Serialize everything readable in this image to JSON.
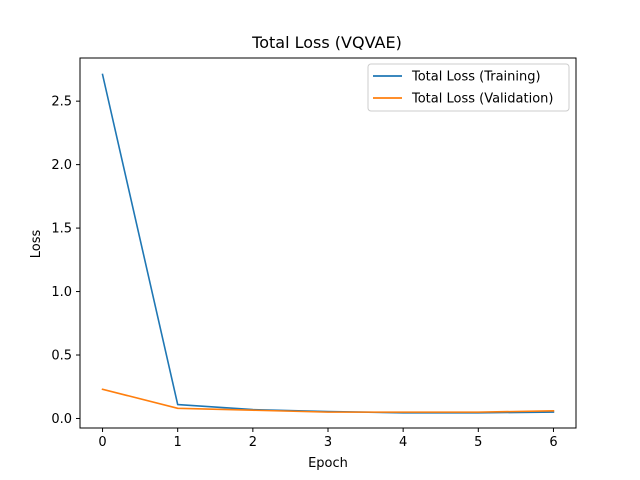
{
  "chart_data": {
    "type": "line",
    "title": "Total Loss (VQVAE)",
    "xlabel": "Epoch",
    "ylabel": "Loss",
    "x": [
      0,
      1,
      2,
      3,
      4,
      5,
      6
    ],
    "xlim": [
      -0.3,
      6.3
    ],
    "ylim": [
      -0.075,
      2.84
    ],
    "xticks": [
      0,
      1,
      2,
      3,
      4,
      5,
      6
    ],
    "xtick_labels": [
      "0",
      "1",
      "2",
      "3",
      "4",
      "5",
      "6"
    ],
    "yticks": [
      0.0,
      0.5,
      1.0,
      1.5,
      2.0,
      2.5
    ],
    "ytick_labels": [
      "0.0",
      "0.5",
      "1.0",
      "1.5",
      "2.0",
      "2.5"
    ],
    "grid": false,
    "legend_position": "top-right",
    "series": [
      {
        "name": "Total Loss (Training)",
        "color": "#1f77b4",
        "values": [
          2.71,
          0.11,
          0.07,
          0.055,
          0.045,
          0.045,
          0.05
        ]
      },
      {
        "name": "Total Loss (Validation)",
        "color": "#ff7f0e",
        "values": [
          0.23,
          0.08,
          0.065,
          0.05,
          0.05,
          0.05,
          0.06
        ]
      }
    ]
  }
}
